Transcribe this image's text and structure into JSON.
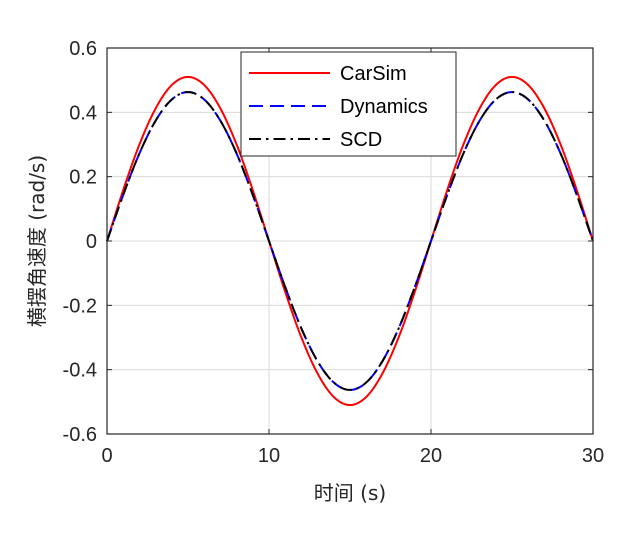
{
  "chart_data": {
    "type": "line",
    "title": "",
    "xlabel": "时间 (s)",
    "ylabel": "横摆角速度 (rad/s)",
    "xlim": [
      0,
      30
    ],
    "ylim": [
      -0.6,
      0.6
    ],
    "xticks": [
      0,
      10,
      20,
      30
    ],
    "xtick_labels": [
      "0",
      "10",
      "20",
      "30"
    ],
    "yticks": [
      0.6,
      0.4,
      0.2,
      0,
      -0.2,
      -0.4,
      -0.6
    ],
    "ytick_labels": [
      "0.6",
      "0.4",
      "0.2",
      "0",
      "-0.2",
      "-0.4",
      "-0.6"
    ],
    "grid": true,
    "legend_position": "top-right",
    "x": [
      0,
      1,
      2,
      3,
      4,
      5,
      6,
      7,
      8,
      9,
      10,
      11,
      12,
      13,
      14,
      15,
      16,
      17,
      18,
      19,
      20,
      21,
      22,
      23,
      24,
      25,
      26,
      27,
      28,
      29,
      30
    ],
    "series": [
      {
        "name": "CarSim",
        "color": "#ff0000",
        "dash": "solid",
        "values": [
          0.0,
          0.158,
          0.3,
          0.412,
          0.485,
          0.51,
          0.485,
          0.412,
          0.3,
          0.158,
          0.0,
          -0.158,
          -0.3,
          -0.412,
          -0.485,
          -0.51,
          -0.485,
          -0.412,
          -0.3,
          -0.158,
          0.0,
          0.158,
          0.3,
          0.412,
          0.485,
          0.51,
          0.485,
          0.412,
          0.3,
          0.158,
          0.0
        ]
      },
      {
        "name": "Dynamics",
        "color": "#0000ff",
        "dash": "dashed",
        "values": [
          0.0,
          0.143,
          0.272,
          0.374,
          0.44,
          0.463,
          0.44,
          0.374,
          0.272,
          0.143,
          0.0,
          -0.143,
          -0.272,
          -0.374,
          -0.44,
          -0.463,
          -0.44,
          -0.374,
          -0.272,
          -0.143,
          0.0,
          0.143,
          0.272,
          0.374,
          0.44,
          0.463,
          0.44,
          0.374,
          0.272,
          0.143,
          0.0
        ]
      },
      {
        "name": "SCD",
        "color": "#000000",
        "dash": "dashdot",
        "values": [
          0.0,
          0.143,
          0.272,
          0.374,
          0.44,
          0.463,
          0.44,
          0.374,
          0.272,
          0.143,
          0.0,
          -0.143,
          -0.272,
          -0.374,
          -0.44,
          -0.463,
          -0.44,
          -0.374,
          -0.272,
          -0.143,
          0.0,
          0.143,
          0.272,
          0.374,
          0.44,
          0.463,
          0.44,
          0.374,
          0.272,
          0.143,
          0.0
        ]
      }
    ]
  }
}
